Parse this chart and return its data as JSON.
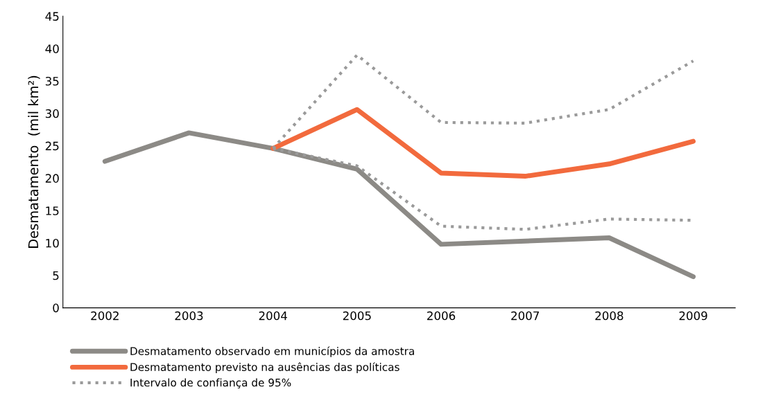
{
  "chart_data": {
    "type": "line",
    "ylabel": "Desmatamento  (mil km²)",
    "categories": [
      "2002",
      "2003",
      "2004",
      "2005",
      "2006",
      "2007",
      "2008",
      "2009"
    ],
    "series": [
      {
        "name": "Desmatamento observado em municípios da amostra",
        "color": "#8c8a86",
        "line_style": "solid",
        "values": [
          22.6,
          27.0,
          24.6,
          21.4,
          9.8,
          10.3,
          10.8,
          4.8
        ]
      },
      {
        "name": "Desmatamento previsto na ausências das políticas",
        "color": "#f26a3d",
        "line_style": "solid",
        "values": [
          null,
          null,
          24.6,
          30.6,
          20.8,
          20.3,
          22.2,
          25.7
        ]
      },
      {
        "name": "Intervalo de confiança de 95%",
        "color": "#9a9a9a",
        "line_style": "dotted",
        "values": [
          null,
          null,
          24.6,
          39.0,
          28.6,
          28.5,
          30.6,
          38.1
        ]
      },
      {
        "color": "#9a9a9a",
        "line_style": "dotted",
        "values": [
          null,
          null,
          24.6,
          21.9,
          12.6,
          12.1,
          13.7,
          13.5
        ]
      }
    ],
    "ylim": [
      0,
      45
    ],
    "yticks": [
      0,
      5,
      10,
      15,
      20,
      25,
      30,
      35,
      40,
      45
    ],
    "grid": false,
    "legend": "bottom",
    "marker": "none"
  }
}
